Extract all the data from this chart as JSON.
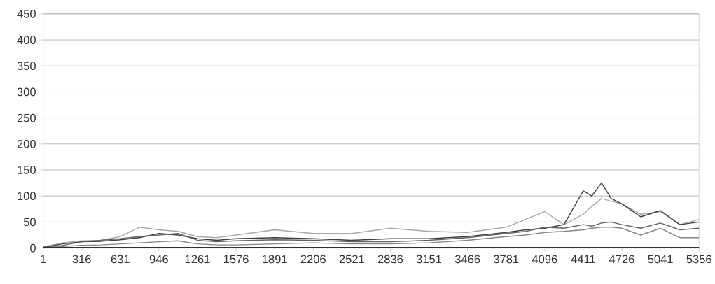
{
  "chart_data": {
    "type": "line",
    "x": [
      1,
      158,
      316,
      473,
      631,
      788,
      946,
      1103,
      1261,
      1418,
      1576,
      1891,
      2206,
      2521,
      2836,
      3151,
      3466,
      3781,
      3940,
      4096,
      4253,
      4411,
      4480,
      4560,
      4640,
      4726,
      4880,
      5041,
      5200,
      5356
    ],
    "series": [
      {
        "color": "#a8a8a8",
        "values": [
          2,
          10,
          14,
          15,
          22,
          40,
          35,
          32,
          22,
          20,
          25,
          35,
          28,
          28,
          38,
          32,
          30,
          40,
          55,
          70,
          45,
          65,
          80,
          95,
          90,
          85,
          65,
          70,
          45,
          55
        ]
      },
      {
        "color": "#404040",
        "values": [
          1,
          8,
          12,
          13,
          16,
          20,
          28,
          25,
          18,
          15,
          18,
          20,
          18,
          15,
          18,
          18,
          22,
          30,
          35,
          38,
          45,
          110,
          100,
          125,
          95,
          85,
          60,
          72,
          45,
          50
        ]
      },
      {
        "color": "#646464",
        "values": [
          1,
          5,
          12,
          15,
          18,
          22,
          25,
          28,
          15,
          12,
          14,
          16,
          15,
          12,
          12,
          15,
          20,
          28,
          32,
          40,
          38,
          45,
          42,
          48,
          50,
          45,
          38,
          48,
          35,
          38
        ]
      },
      {
        "color": "#858585",
        "values": [
          0,
          3,
          5,
          6,
          8,
          10,
          12,
          14,
          8,
          6,
          6,
          8,
          10,
          8,
          8,
          10,
          15,
          22,
          25,
          30,
          32,
          35,
          38,
          40,
          40,
          38,
          25,
          38,
          20,
          20
        ]
      },
      {
        "color": "#303030",
        "values": [
          1,
          1,
          1,
          1,
          1,
          1,
          1,
          1,
          1,
          1,
          1,
          1,
          1,
          1,
          1,
          1,
          1,
          1,
          1,
          1,
          1,
          1,
          1,
          1,
          1,
          1,
          1,
          1,
          1,
          1
        ]
      }
    ],
    "xlim": [
      1,
      5356
    ],
    "xticks": [
      1,
      316,
      631,
      946,
      1261,
      1576,
      1891,
      2206,
      2521,
      2836,
      3151,
      3466,
      3781,
      4096,
      4411,
      4726,
      5041,
      5356
    ],
    "ylim": [
      0,
      450
    ],
    "yticks": [
      0,
      50,
      100,
      150,
      200,
      250,
      300,
      350,
      400,
      450
    ],
    "grid": "y"
  }
}
